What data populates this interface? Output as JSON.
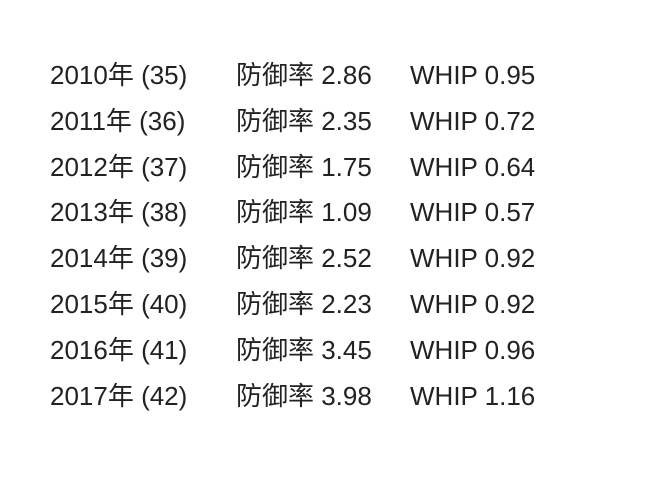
{
  "rows": [
    {
      "year": "2010年 (35)",
      "era": "防御率 2.86",
      "whip": "WHIP 0.95"
    },
    {
      "year": "2011年 (36)",
      "era": "防御率 2.35",
      "whip": "WHIP 0.72"
    },
    {
      "year": "2012年 (37)",
      "era": "防御率 1.75",
      "whip": "WHIP 0.64"
    },
    {
      "year": "2013年 (38)",
      "era": "防御率 1.09",
      "whip": "WHIP 0.57"
    },
    {
      "year": "2014年 (39)",
      "era": "防御率 2.52",
      "whip": "WHIP 0.92"
    },
    {
      "year": "2015年 (40)",
      "era": "防御率 2.23",
      "whip": "WHIP 0.92"
    },
    {
      "year": "2016年 (41)",
      "era": "防御率 3.45",
      "whip": "WHIP 0.96"
    },
    {
      "year": "2017年 (42)",
      "era": "防御率 3.98",
      "whip": "WHIP 1.16"
    }
  ]
}
